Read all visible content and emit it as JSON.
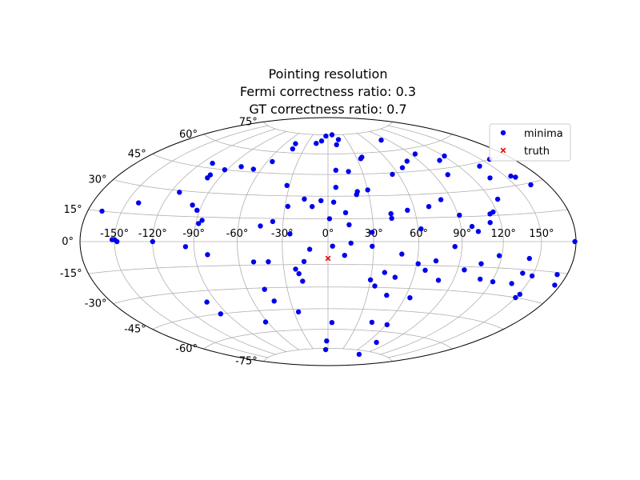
{
  "title_lines": [
    "Pointing resolution",
    "Fermi correctness ratio: 0.3",
    "GT correctness ratio: 0.7"
  ],
  "chart_data": {
    "type": "scatter",
    "projection": "aitoff-hammer-style all-sky",
    "title": "Pointing resolution\nFermi correctness ratio: 0.3\nGT correctness ratio: 0.7",
    "xlabel": "",
    "ylabel": "",
    "xlim": [
      -180,
      180
    ],
    "ylim": [
      -90,
      90
    ],
    "grid": true,
    "legend": "top-right",
    "x_ticks": [
      "-150°",
      "-120°",
      "-90°",
      "-60°",
      "-30°",
      "0°",
      "30°",
      "60°",
      "90°",
      "120°",
      "150°"
    ],
    "y_ticks": [
      "-75°",
      "-60°",
      "-45°",
      "-30°",
      "-15°",
      "0°",
      "15°",
      "30°",
      "45°",
      "60°",
      "75°"
    ],
    "series": [
      {
        "name": "minima",
        "marker": "circle",
        "color": "#0000ee",
        "points": [
          [
            -167,
            15
          ],
          [
            -152,
            1
          ],
          [
            -150,
            1
          ],
          [
            -148,
            0
          ],
          [
            -140,
            21
          ],
          [
            -120,
            0
          ],
          [
            -113,
            29
          ],
          [
            -110,
            48
          ],
          [
            -100,
            41
          ],
          [
            -97,
            22
          ],
          [
            -100,
            39
          ],
          [
            -92,
            19
          ],
          [
            -88,
            11
          ],
          [
            -86,
            13
          ],
          [
            -96,
            -3
          ],
          [
            -81,
            -8
          ],
          [
            -98,
            -37
          ],
          [
            -96,
            -45
          ],
          [
            -92,
            45
          ],
          [
            -80,
            48
          ],
          [
            -67,
            47
          ],
          [
            -55,
            53
          ],
          [
            -46,
            67
          ],
          [
            -44,
            63
          ],
          [
            -32,
            37
          ],
          [
            -37,
            13
          ],
          [
            -28,
            23
          ],
          [
            -25,
            5
          ],
          [
            -17,
            28
          ],
          [
            -17,
            68
          ],
          [
            -10,
            70
          ],
          [
            -4,
            74
          ],
          [
            8,
            75
          ],
          [
            12,
            67
          ],
          [
            7,
            48
          ],
          [
            -45,
            10
          ],
          [
            -50,
            -13
          ],
          [
            -40,
            -13
          ],
          [
            -62,
            -53
          ],
          [
            -47,
            -31
          ],
          [
            -43,
            -39
          ],
          [
            -22,
            -18
          ],
          [
            -26,
            -47
          ],
          [
            -16,
            -13
          ],
          [
            -5,
            -76
          ],
          [
            -2,
            -69
          ],
          [
            4,
            -55
          ],
          [
            -20,
            -21
          ],
          [
            -18,
            -26
          ],
          [
            -12,
            -5
          ],
          [
            15,
            -1
          ],
          [
            3,
            -3
          ],
          [
            11,
            -9
          ],
          [
            29,
            -3
          ],
          [
            49,
            -8
          ],
          [
            61,
            -14
          ],
          [
            73,
            -12
          ],
          [
            67,
            -18
          ],
          [
            79,
            -24
          ],
          [
            95,
            -17
          ],
          [
            110,
            -22
          ],
          [
            121,
            -23
          ],
          [
            34,
            -29
          ],
          [
            39,
            -20
          ],
          [
            47,
            -23
          ],
          [
            30,
            -25
          ],
          [
            45,
            -35
          ],
          [
            64,
            -36
          ],
          [
            61,
            -55
          ],
          [
            73,
            -68
          ],
          [
            81,
            -78
          ],
          [
            44,
            -54
          ],
          [
            85,
            -3
          ],
          [
            118,
            -8
          ],
          [
            106,
            -13
          ],
          [
            142,
            -9
          ],
          [
            141,
            -17
          ],
          [
            150,
            -18
          ],
          [
            137,
            -23
          ],
          [
            151,
            -28
          ],
          [
            150,
            -30
          ],
          [
            171,
            -16
          ],
          [
            175,
            -21
          ],
          [
            179,
            0
          ],
          [
            102,
            6
          ],
          [
            91,
            16
          ],
          [
            98,
            9
          ],
          [
            112,
            11
          ],
          [
            114,
            16
          ],
          [
            117,
            17
          ],
          [
            126,
            24
          ],
          [
            135,
            36
          ],
          [
            139,
            43
          ],
          [
            110,
            50
          ],
          [
            121,
            52
          ],
          [
            164,
            29
          ],
          [
            158,
            45
          ],
          [
            158,
            34
          ],
          [
            155,
            35
          ],
          [
            102,
            41
          ],
          [
            82,
            26
          ],
          [
            71,
            22
          ],
          [
            62,
            8
          ],
          [
            43,
            15
          ],
          [
            43,
            18
          ],
          [
            30,
            34
          ],
          [
            21,
            31
          ],
          [
            18,
            47
          ],
          [
            14,
            11
          ],
          [
            6,
            36
          ],
          [
            1,
            15
          ],
          [
            17,
            71
          ],
          [
            34,
            56
          ],
          [
            36,
            57
          ],
          [
            55,
            44
          ],
          [
            68,
            48
          ],
          [
            78,
            52
          ],
          [
            81,
            68
          ],
          [
            95,
            56
          ],
          [
            55,
            20
          ],
          [
            22,
            33
          ],
          [
            12,
            19
          ],
          [
            4,
            26
          ],
          [
            -5,
            27
          ],
          [
            -11,
            23
          ],
          [
            29,
            6
          ]
        ]
      },
      {
        "name": "truth",
        "marker": "x",
        "color": "#ee0000",
        "points": [
          [
            0,
            -11
          ]
        ]
      }
    ]
  }
}
